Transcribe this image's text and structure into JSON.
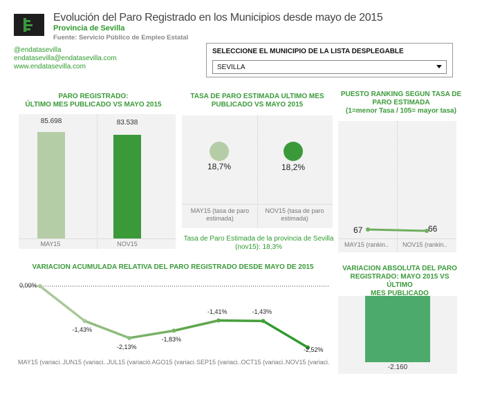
{
  "header": {
    "logo_icon": "app-logo-icon",
    "title": "Evolución del Paro Registrado en los Municipios desde mayo de 2015",
    "subtitle": "Provincia de Sevilla",
    "source": "Fuente: Servicio Público de Empleo Estatal"
  },
  "contacts": {
    "twitter": "@endatasevilla",
    "email": "endatasevilla@endatasevilla.com",
    "web": "www.endatasevilla.com"
  },
  "selector": {
    "label": "SELECCIONE EL MUNICIPIO DE LA LISTA DESPLEGABLE",
    "value": "SEVILLA",
    "arrow_icon": "dropdown-arrow-icon"
  },
  "colors": {
    "light_green": "#b5cda7",
    "dark_green": "#3a9a3a",
    "mid_green": "#6fae5f",
    "bar_abs": "#4caa6c"
  },
  "chart_data": [
    {
      "type": "bar",
      "title_line1": "PARO REGISTRADO:",
      "title_line2": "ÚLTIMO MES PUBLICADO VS MAYO 2015",
      "categories": [
        "MAY15",
        "NOV15"
      ],
      "values": [
        85698,
        83538
      ],
      "value_labels": [
        "85.698",
        "83.538"
      ],
      "ylim": [
        0,
        90000
      ]
    },
    {
      "type": "scatter",
      "title_line1": "TASA DE PARO ESTIMADA ULTIMO MES",
      "title_line2": "PUBLICADO VS MAYO 2015",
      "categories_line1": [
        "MAY15 (tasa de paro",
        "NOV15 (tasa de paro"
      ],
      "categories_line2": [
        "estimada)",
        "estimada)"
      ],
      "values": [
        18.7,
        18.2
      ],
      "value_labels": [
        "18,7%",
        "18,2%"
      ],
      "note_line1": "Tasa de Paro Estimada de la provincia de Sevilla",
      "note_line2": "(nov15): 18,3%"
    },
    {
      "type": "line",
      "title_line1": "PUESTO RANKING SEGUN TASA DE",
      "title_line2": "PARO ESTIMADA",
      "title_line3": "(1=menor Tasa / 105= mayor tasa)",
      "categories": [
        "MAY15 (rankin..",
        "NOV15 (rankin.."
      ],
      "values": [
        67,
        66
      ],
      "value_labels": [
        "67",
        "66"
      ]
    },
    {
      "type": "line",
      "title": "VARIACION ACUMULADA RELATIVA DEL PARO REGISTRADO DESDE MAYO DE 2015",
      "categories": [
        "MAY15 (variaci..",
        "JUN15 (variaci..",
        "JUL15 (variació..",
        "AGO15 (variaci..",
        "SEP15 (variaci..",
        "OCT15 (variaci..",
        "NOV15 (variaci.."
      ],
      "values": [
        0.0,
        -1.43,
        -2.13,
        -1.83,
        -1.41,
        -1.43,
        -2.52
      ],
      "value_labels": [
        "0,00%",
        "-1,43%",
        "-2,13%",
        "-1,83%",
        "-1,41%",
        "-1,43%",
        "-2,52%"
      ],
      "ylim": [
        -2.7,
        0.2
      ]
    },
    {
      "type": "bar",
      "title_line1": "VARIACION ABSOLUTA DEL PARO",
      "title_line2": "REGISTRADO: MAYO 2015 VS ÚLTIMO",
      "title_line3": "MES PUBLICADO",
      "values": [
        -2160
      ],
      "value_labels": [
        "-2.160"
      ]
    }
  ]
}
